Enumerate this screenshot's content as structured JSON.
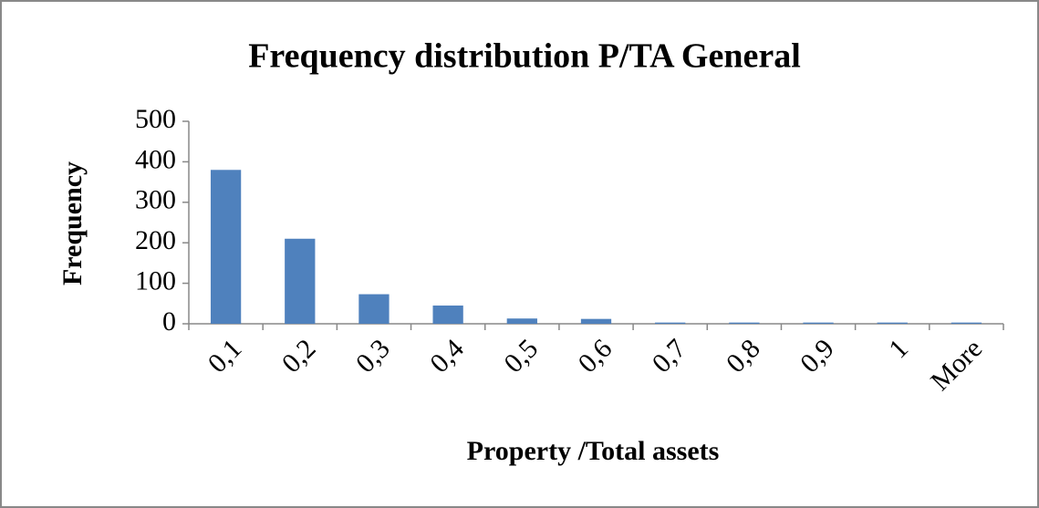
{
  "chart_data": {
    "type": "bar",
    "title": "Frequency distribution P/TA General",
    "x_label": "Property /Total assets",
    "y_label": "Frequency",
    "categories": [
      "0,1",
      "0,2",
      "0,3",
      "0,4",
      "0,5",
      "0,6",
      "0,7",
      "0,8",
      "0,9",
      "1",
      "More"
    ],
    "values": [
      380,
      210,
      73,
      45,
      13,
      12,
      3,
      3,
      3,
      3,
      3
    ],
    "color": "#4f81bd",
    "ylim": [
      0,
      500
    ],
    "yticks": [
      0,
      100,
      200,
      300,
      400,
      500
    ],
    "grid": false
  }
}
